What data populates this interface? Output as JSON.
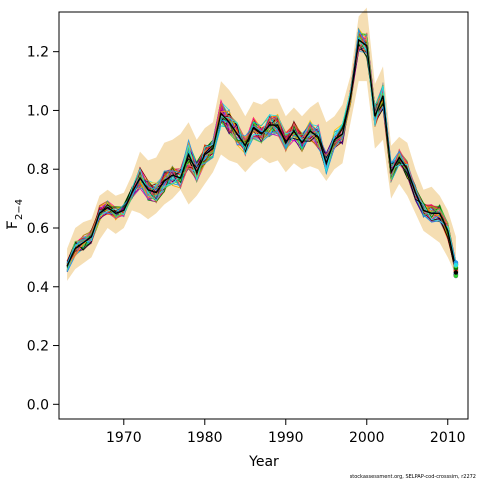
{
  "chart_data": {
    "type": "line",
    "xlabel": "Year",
    "ylabel_main": "F",
    "ylabel_sub": "2−4",
    "caption": "stockassessment.org, SELPAP-cod-crosssim, r2272",
    "xlim": [
      1962,
      2012.5
    ],
    "ylim": [
      -0.05,
      1.335
    ],
    "xticks": [
      1970,
      1980,
      1990,
      2000,
      2010
    ],
    "xtick_labels": [
      "1970",
      "1980",
      "1990",
      "2000",
      "2010"
    ],
    "yticks": [
      0.0,
      0.2,
      0.4,
      0.6,
      0.8,
      1.0,
      1.2
    ],
    "ytick_labels": [
      "0.0",
      "0.2",
      "0.4",
      "0.6",
      "0.8",
      "1.0",
      "1.2"
    ],
    "grid": false,
    "legend": "none",
    "band_color": "#F5DEB3",
    "x": [
      1963,
      1964,
      1965,
      1966,
      1967,
      1968,
      1969,
      1970,
      1971,
      1972,
      1973,
      1974,
      1975,
      1976,
      1977,
      1978,
      1979,
      1980,
      1981,
      1982,
      1983,
      1984,
      1985,
      1986,
      1987,
      1988,
      1989,
      1990,
      1991,
      1992,
      1993,
      1994,
      1995,
      1996,
      1997,
      1998,
      1999,
      2000,
      2001,
      2002,
      2003,
      2004,
      2005,
      2006,
      2007,
      2008,
      2009,
      2010,
      2011
    ],
    "band_lower": [
      0.42,
      0.46,
      0.48,
      0.5,
      0.56,
      0.6,
      0.58,
      0.6,
      0.66,
      0.65,
      0.63,
      0.65,
      0.68,
      0.7,
      0.73,
      0.68,
      0.71,
      0.75,
      0.79,
      0.85,
      0.83,
      0.82,
      0.79,
      0.82,
      0.84,
      0.82,
      0.83,
      0.79,
      0.82,
      0.8,
      0.81,
      0.8,
      0.76,
      0.8,
      0.82,
      0.96,
      1.1,
      1.1,
      0.87,
      0.9,
      0.7,
      0.75,
      0.71,
      0.65,
      0.59,
      0.57,
      0.55,
      0.5,
      0.44
    ],
    "band_upper": [
      0.53,
      0.6,
      0.62,
      0.63,
      0.71,
      0.73,
      0.71,
      0.72,
      0.78,
      0.86,
      0.83,
      0.84,
      0.89,
      0.9,
      0.92,
      0.96,
      0.9,
      0.94,
      0.96,
      1.1,
      1.07,
      1.03,
      0.98,
      1.03,
      1.02,
      1.04,
      1.04,
      0.98,
      1.01,
      0.98,
      1.01,
      1.03,
      0.96,
      0.98,
      1.02,
      1.12,
      1.32,
      1.35,
      1.09,
      1.15,
      0.88,
      0.91,
      0.89,
      0.8,
      0.73,
      0.74,
      0.71,
      0.66,
      0.57
    ],
    "series_base": [
      0.47,
      0.53,
      0.55,
      0.57,
      0.65,
      0.67,
      0.65,
      0.66,
      0.72,
      0.77,
      0.73,
      0.72,
      0.76,
      0.78,
      0.77,
      0.85,
      0.79,
      0.85,
      0.87,
      0.99,
      0.96,
      0.92,
      0.88,
      0.94,
      0.92,
      0.95,
      0.95,
      0.89,
      0.93,
      0.89,
      0.93,
      0.91,
      0.82,
      0.9,
      0.92,
      1.05,
      1.24,
      1.22,
      0.98,
      1.05,
      0.79,
      0.84,
      0.8,
      0.72,
      0.66,
      0.65,
      0.65,
      0.59,
      0.46
    ],
    "series_count": 45,
    "series_colors": [
      "#000000",
      "#DF536B",
      "#61D04F",
      "#2297E6",
      "#28E2E5",
      "#CD0BBC",
      "#F5C710",
      "#9E9E9E",
      "#8B008B",
      "#FF4500",
      "#1E90FF",
      "#32CD32",
      "#FF1493",
      "#800000",
      "#FFA500",
      "#4B0082",
      "#00CED1",
      "#DC143C",
      "#008000",
      "#B8860B"
    ]
  }
}
